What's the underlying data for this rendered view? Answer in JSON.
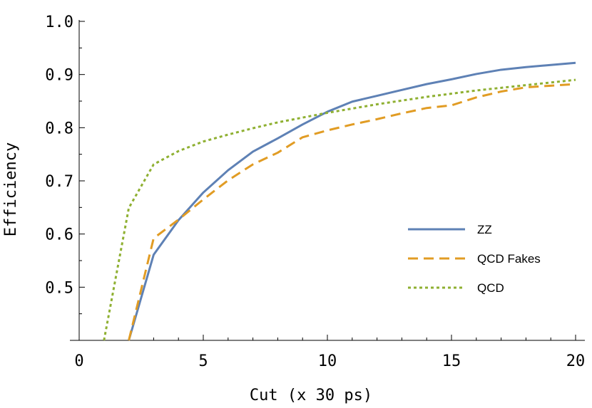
{
  "chart_data": {
    "type": "line",
    "xlabel": "Cut (x 30 ps)",
    "ylabel": "Efficiency",
    "xlim": [
      0,
      20
    ],
    "ylim": [
      0.4,
      1.0
    ],
    "x_ticks": [
      0,
      5,
      10,
      15,
      20
    ],
    "x_tick_labels": [
      "0",
      "5",
      "10",
      "15",
      "20"
    ],
    "y_ticks": [
      0.5,
      0.6,
      0.7,
      0.8,
      0.9,
      1.0
    ],
    "y_tick_labels": [
      "0.5",
      "0.6",
      "0.7",
      "0.8",
      "0.9",
      "1.0"
    ],
    "grid": false,
    "legend_position": "center-right",
    "series": [
      {
        "name": "ZZ",
        "color": "#5e81b5",
        "dash": "solid",
        "x": [
          2,
          3,
          4,
          5,
          6,
          7,
          8,
          9,
          10,
          11,
          12,
          13,
          14,
          15,
          16,
          17,
          18,
          19,
          20
        ],
        "values": [
          0.4,
          0.561,
          0.626,
          0.678,
          0.72,
          0.755,
          0.78,
          0.806,
          0.83,
          0.849,
          0.86,
          0.871,
          0.882,
          0.891,
          0.901,
          0.909,
          0.914,
          0.918,
          0.922
        ]
      },
      {
        "name": "QCD Fakes",
        "color": "#e19c24",
        "dash": "dashed",
        "x": [
          2,
          3,
          4,
          5,
          6,
          7,
          8,
          9,
          10,
          11,
          12,
          13,
          14,
          15,
          16,
          17,
          18,
          19,
          20
        ],
        "values": [
          0.4,
          0.592,
          0.627,
          0.665,
          0.701,
          0.731,
          0.753,
          0.782,
          0.795,
          0.806,
          0.816,
          0.827,
          0.837,
          0.842,
          0.857,
          0.868,
          0.876,
          0.879,
          0.882
        ]
      },
      {
        "name": "QCD",
        "color": "#8fb032",
        "dash": "dotted",
        "x": [
          1,
          2,
          3,
          4,
          5,
          6,
          7,
          8,
          9,
          10,
          11,
          12,
          13,
          14,
          15,
          16,
          17,
          18,
          19,
          20
        ],
        "values": [
          0.4,
          0.649,
          0.731,
          0.756,
          0.774,
          0.787,
          0.799,
          0.81,
          0.819,
          0.828,
          0.836,
          0.844,
          0.851,
          0.858,
          0.864,
          0.87,
          0.875,
          0.88,
          0.885,
          0.89
        ]
      }
    ]
  }
}
